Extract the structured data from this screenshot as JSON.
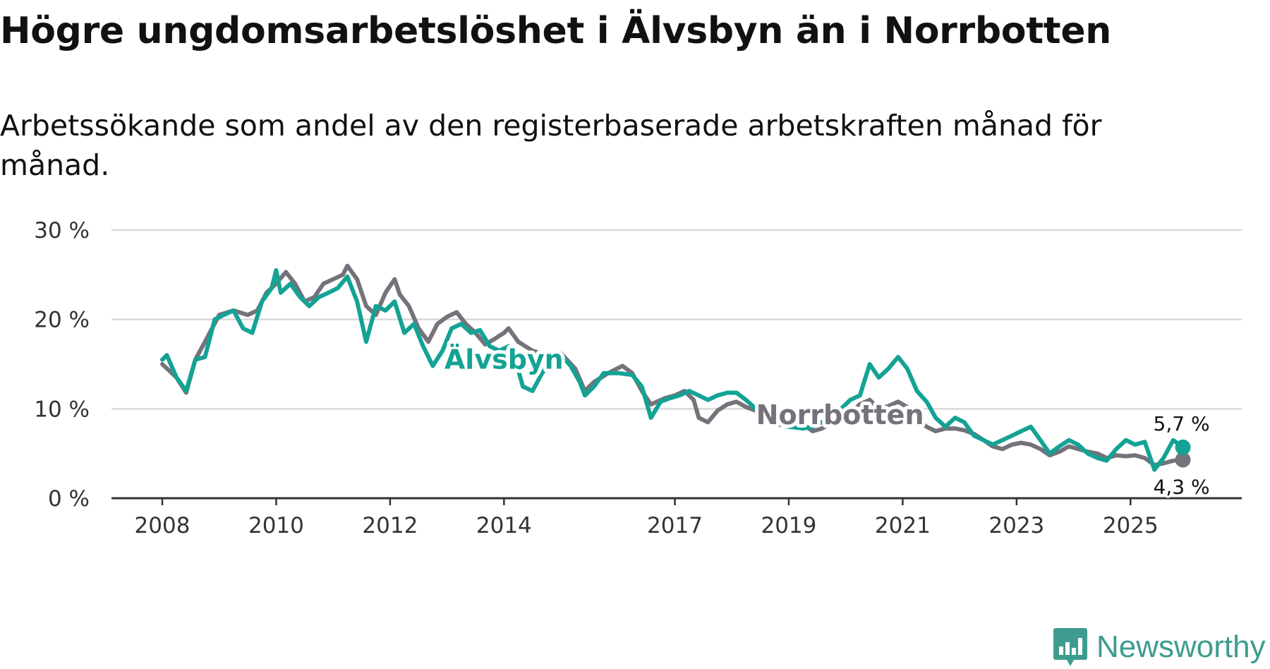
{
  "header": {
    "title": "Högre ungdomsarbetslöshet i Älvsbyn än i Norrbotten",
    "subtitle": "Arbetssökande som andel av den registerbaserade arbetskraften månad för månad."
  },
  "brand": {
    "name": "Newsworthy",
    "icon": "newsworthy-logo-icon",
    "color": "#3e9c8f"
  },
  "colors": {
    "alvsbyn": "#13a394",
    "norrbotten": "#74727a",
    "grid": "#d9d9d9",
    "axis": "#333333"
  },
  "chart_data": {
    "type": "line",
    "title": "Högre ungdomsarbetslöshet i Älvsbyn än i Norrbotten",
    "xlabel": "",
    "ylabel": "",
    "ylim": [
      0,
      30
    ],
    "xlim": [
      2007.4,
      2026.4
    ],
    "yticks": [
      0,
      10,
      20,
      30
    ],
    "ytick_labels": [
      "0 %",
      "10 %",
      "20 %",
      "30 %"
    ],
    "xticks": [
      2008,
      2010,
      2012,
      2014,
      2017,
      2019,
      2021,
      2023,
      2025
    ],
    "xtick_labels": [
      "2008",
      "2010",
      "2012",
      "2014",
      "2017",
      "2019",
      "2021",
      "2023",
      "2025"
    ],
    "grid": true,
    "series": [
      {
        "name": "Norrbotten",
        "label": "Norrbotten",
        "color": "#74727a",
        "end_label": "4,3 %",
        "points": [
          [
            2008.0,
            15.0
          ],
          [
            2008.25,
            13.5
          ],
          [
            2008.42,
            11.8
          ],
          [
            2008.58,
            15.5
          ],
          [
            2008.75,
            17.5
          ],
          [
            2009.0,
            20.5
          ],
          [
            2009.25,
            21.0
          ],
          [
            2009.5,
            20.5
          ],
          [
            2009.67,
            21.0
          ],
          [
            2009.83,
            23.0
          ],
          [
            2010.0,
            24.0
          ],
          [
            2010.17,
            25.3
          ],
          [
            2010.33,
            24.0
          ],
          [
            2010.5,
            22.0
          ],
          [
            2010.67,
            22.5
          ],
          [
            2010.83,
            24.0
          ],
          [
            2011.0,
            24.5
          ],
          [
            2011.17,
            25.0
          ],
          [
            2011.25,
            26.0
          ],
          [
            2011.42,
            24.5
          ],
          [
            2011.58,
            21.5
          ],
          [
            2011.75,
            20.5
          ],
          [
            2011.92,
            23.0
          ],
          [
            2012.08,
            24.5
          ],
          [
            2012.17,
            22.8
          ],
          [
            2012.33,
            21.5
          ],
          [
            2012.5,
            19.0
          ],
          [
            2012.67,
            17.5
          ],
          [
            2012.83,
            19.5
          ],
          [
            2013.0,
            20.3
          ],
          [
            2013.17,
            20.8
          ],
          [
            2013.33,
            19.5
          ],
          [
            2013.5,
            18.5
          ],
          [
            2013.67,
            17.2
          ],
          [
            2013.83,
            17.8
          ],
          [
            2014.0,
            18.5
          ],
          [
            2014.08,
            19.0
          ],
          [
            2014.25,
            17.5
          ],
          [
            2014.5,
            16.5
          ],
          [
            2014.75,
            16.0
          ],
          [
            2015.0,
            16.2
          ],
          [
            2015.25,
            14.5
          ],
          [
            2015.42,
            12.0
          ],
          [
            2015.58,
            13.0
          ],
          [
            2015.83,
            14.0
          ],
          [
            2016.08,
            14.8
          ],
          [
            2016.25,
            14.0
          ],
          [
            2016.42,
            12.0
          ],
          [
            2016.58,
            10.5
          ],
          [
            2016.83,
            11.2
          ],
          [
            2017.0,
            11.5
          ],
          [
            2017.17,
            12.0
          ],
          [
            2017.33,
            11.0
          ],
          [
            2017.42,
            9.0
          ],
          [
            2017.58,
            8.5
          ],
          [
            2017.75,
            9.8
          ],
          [
            2017.92,
            10.5
          ],
          [
            2018.08,
            10.8
          ],
          [
            2018.25,
            10.2
          ],
          [
            2018.42,
            9.8
          ],
          [
            2018.58,
            8.5
          ],
          [
            2018.83,
            8.2
          ],
          [
            2019.08,
            8.8
          ],
          [
            2019.25,
            8.3
          ],
          [
            2019.42,
            7.5
          ],
          [
            2019.58,
            7.8
          ],
          [
            2019.75,
            8.5
          ],
          [
            2019.92,
            9.0
          ],
          [
            2020.08,
            9.5
          ],
          [
            2020.25,
            10.5
          ],
          [
            2020.42,
            11.0
          ],
          [
            2020.58,
            10.0
          ],
          [
            2020.75,
            10.3
          ],
          [
            2020.92,
            10.8
          ],
          [
            2021.08,
            10.2
          ],
          [
            2021.25,
            8.8
          ],
          [
            2021.42,
            8.0
          ],
          [
            2021.58,
            7.5
          ],
          [
            2021.75,
            7.8
          ],
          [
            2021.92,
            7.8
          ],
          [
            2022.08,
            7.6
          ],
          [
            2022.25,
            7.2
          ],
          [
            2022.42,
            6.5
          ],
          [
            2022.58,
            5.8
          ],
          [
            2022.75,
            5.5
          ],
          [
            2022.92,
            6.0
          ],
          [
            2023.08,
            6.2
          ],
          [
            2023.25,
            6.0
          ],
          [
            2023.42,
            5.5
          ],
          [
            2023.58,
            4.8
          ],
          [
            2023.75,
            5.2
          ],
          [
            2023.92,
            5.8
          ],
          [
            2024.08,
            5.5
          ],
          [
            2024.25,
            5.2
          ],
          [
            2024.42,
            5.0
          ],
          [
            2024.58,
            4.5
          ],
          [
            2024.75,
            4.8
          ],
          [
            2024.92,
            4.7
          ],
          [
            2025.08,
            4.8
          ],
          [
            2025.25,
            4.5
          ],
          [
            2025.42,
            3.7
          ],
          [
            2025.58,
            3.9
          ],
          [
            2025.75,
            4.2
          ],
          [
            2025.92,
            4.3
          ]
        ]
      },
      {
        "name": "Älvsbyn",
        "label": "Älvsbyn",
        "color": "#13a394",
        "end_label": "5,7 %",
        "points": [
          [
            2008.0,
            15.5
          ],
          [
            2008.08,
            16.0
          ],
          [
            2008.25,
            13.5
          ],
          [
            2008.42,
            12.0
          ],
          [
            2008.58,
            15.5
          ],
          [
            2008.75,
            15.8
          ],
          [
            2008.92,
            20.0
          ],
          [
            2009.08,
            20.5
          ],
          [
            2009.25,
            21.0
          ],
          [
            2009.42,
            19.0
          ],
          [
            2009.58,
            18.5
          ],
          [
            2009.75,
            22.0
          ],
          [
            2009.92,
            23.5
          ],
          [
            2010.0,
            25.5
          ],
          [
            2010.08,
            23.0
          ],
          [
            2010.25,
            24.0
          ],
          [
            2010.42,
            22.5
          ],
          [
            2010.58,
            21.5
          ],
          [
            2010.75,
            22.5
          ],
          [
            2010.92,
            23.0
          ],
          [
            2011.08,
            23.5
          ],
          [
            2011.25,
            24.8
          ],
          [
            2011.42,
            22.0
          ],
          [
            2011.58,
            17.5
          ],
          [
            2011.75,
            21.5
          ],
          [
            2011.92,
            21.0
          ],
          [
            2012.08,
            22.0
          ],
          [
            2012.25,
            18.5
          ],
          [
            2012.42,
            19.5
          ],
          [
            2012.58,
            17.0
          ],
          [
            2012.75,
            14.8
          ],
          [
            2012.92,
            16.5
          ],
          [
            2013.08,
            19.0
          ],
          [
            2013.25,
            19.5
          ],
          [
            2013.42,
            18.5
          ],
          [
            2013.58,
            18.8
          ],
          [
            2013.75,
            17.0
          ],
          [
            2013.92,
            16.5
          ],
          [
            2014.08,
            17.0
          ],
          [
            2014.17,
            16.2
          ],
          [
            2014.33,
            12.5
          ],
          [
            2014.5,
            12.0
          ],
          [
            2014.67,
            14.0
          ],
          [
            2014.83,
            15.5
          ],
          [
            2015.0,
            16.0
          ],
          [
            2015.17,
            14.8
          ],
          [
            2015.33,
            13.0
          ],
          [
            2015.42,
            11.5
          ],
          [
            2015.58,
            12.5
          ],
          [
            2015.75,
            14.0
          ],
          [
            2016.0,
            14.0
          ],
          [
            2016.25,
            13.8
          ],
          [
            2016.42,
            12.5
          ],
          [
            2016.58,
            9.0
          ],
          [
            2016.75,
            10.8
          ],
          [
            2016.92,
            11.2
          ],
          [
            2017.08,
            11.5
          ],
          [
            2017.25,
            12.0
          ],
          [
            2017.42,
            11.5
          ],
          [
            2017.58,
            11.0
          ],
          [
            2017.75,
            11.5
          ],
          [
            2017.92,
            11.8
          ],
          [
            2018.08,
            11.8
          ],
          [
            2018.25,
            11.0
          ],
          [
            2018.42,
            10.0
          ],
          [
            2018.58,
            9.0
          ],
          [
            2018.75,
            8.5
          ],
          [
            2019.0,
            8.0
          ],
          [
            2019.25,
            7.8
          ],
          [
            2019.42,
            8.0
          ],
          [
            2019.58,
            8.5
          ],
          [
            2019.75,
            9.0
          ],
          [
            2019.92,
            10.0
          ],
          [
            2020.08,
            11.0
          ],
          [
            2020.25,
            11.5
          ],
          [
            2020.42,
            15.0
          ],
          [
            2020.58,
            13.5
          ],
          [
            2020.75,
            14.5
          ],
          [
            2020.92,
            15.8
          ],
          [
            2021.08,
            14.5
          ],
          [
            2021.25,
            12.0
          ],
          [
            2021.42,
            10.8
          ],
          [
            2021.58,
            9.0
          ],
          [
            2021.75,
            8.0
          ],
          [
            2021.92,
            9.0
          ],
          [
            2022.08,
            8.5
          ],
          [
            2022.25,
            7.0
          ],
          [
            2022.42,
            6.5
          ],
          [
            2022.58,
            6.0
          ],
          [
            2022.75,
            6.5
          ],
          [
            2022.92,
            7.0
          ],
          [
            2023.08,
            7.5
          ],
          [
            2023.25,
            8.0
          ],
          [
            2023.42,
            6.5
          ],
          [
            2023.58,
            5.0
          ],
          [
            2023.75,
            5.8
          ],
          [
            2023.92,
            6.5
          ],
          [
            2024.08,
            6.0
          ],
          [
            2024.25,
            5.0
          ],
          [
            2024.42,
            4.5
          ],
          [
            2024.58,
            4.2
          ],
          [
            2024.75,
            5.5
          ],
          [
            2024.92,
            6.5
          ],
          [
            2025.08,
            6.0
          ],
          [
            2025.25,
            6.3
          ],
          [
            2025.42,
            3.2
          ],
          [
            2025.58,
            4.5
          ],
          [
            2025.75,
            6.5
          ],
          [
            2025.92,
            5.7
          ]
        ]
      }
    ],
    "annotations": [
      {
        "text": "Älvsbyn",
        "series": "Älvsbyn",
        "x": 2014.0,
        "y": 15.5
      },
      {
        "text": "Norrbotten",
        "series": "Norrbotten",
        "x": 2019.9,
        "y": 9.3
      }
    ]
  }
}
